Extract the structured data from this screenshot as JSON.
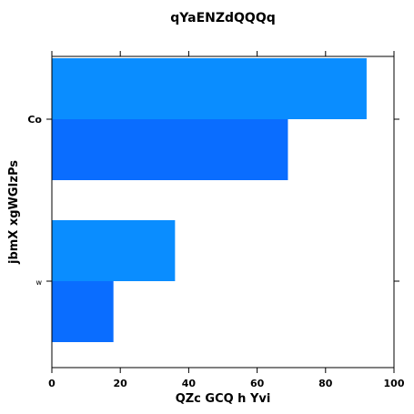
{
  "chart_data": {
    "type": "bar",
    "orientation": "horizontal",
    "title": "qYaENZdQQQq",
    "xlabel": "QZc GCQ h Yvi",
    "ylabel": "jbmX xgWGIzPs",
    "categories": [
      "Co",
      "w"
    ],
    "series": [
      {
        "color": "#0a8dff",
        "values": [
          92,
          36
        ]
      },
      {
        "color": "#0a6dff",
        "values": [
          69,
          18
        ]
      }
    ],
    "xlim": [
      0,
      100
    ],
    "xticks": [
      0,
      20,
      40,
      60,
      80,
      100
    ],
    "grid": false,
    "legend": "none"
  }
}
